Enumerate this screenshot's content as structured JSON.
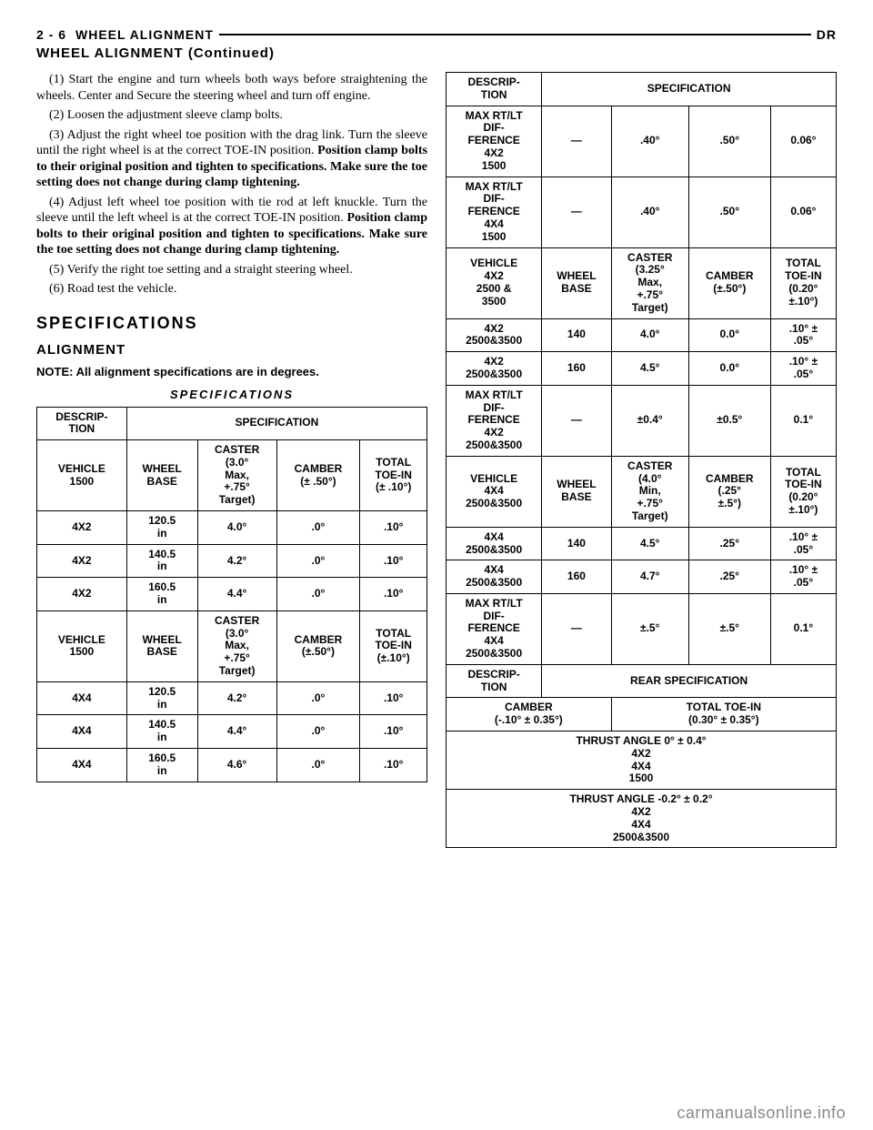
{
  "header": {
    "page_num": "2 - 6",
    "section": "WHEEL ALIGNMENT",
    "model": "DR",
    "continued": "WHEEL ALIGNMENT (Continued)"
  },
  "left_col": {
    "step1": "(1) Start the engine and turn wheels both ways before straightening the wheels. Center and Secure the steering wheel and turn off engine.",
    "step2": "(2) Loosen the adjustment sleeve clamp bolts.",
    "step3": "(3) Adjust the right wheel toe position with the drag link. Turn the sleeve until the right wheel is at the correct TOE-IN position. Position clamp bolts to their original position and tighten to specifications. Make sure the toe setting does not change during clamp tightening.",
    "step4": "(4) Adjust left wheel toe position with tie rod at left knuckle. Turn the sleeve until the left wheel is at the correct TOE-IN position. Position clamp bolts to their original position and tighten to specifications. Make sure the toe setting does not change during clamp tightening.",
    "step5": "(5) Verify the right toe setting and a straight steering wheel.",
    "step6": "(6) Road test the vehicle.",
    "h2": "SPECIFICATIONS",
    "h3": "ALIGNMENT",
    "note": "NOTE: All alignment specifications are in degrees.",
    "table_title": "SPECIFICATIONS"
  },
  "tableA": {
    "r1c1": "DESCRIP-\nTION",
    "r1c2": "SPECIFICATION",
    "r2": [
      "VEHICLE\n1500",
      "WHEEL\nBASE",
      "CASTER\n(3.0°\nMax,\n+.75°\nTarget)",
      "CAMBER\n(± .50°)",
      "TOTAL\nTOE-IN\n(± .10°)"
    ],
    "r3": [
      "4X2",
      "120.5\nin",
      "4.0°",
      ".0°",
      ".10°"
    ],
    "r4": [
      "4X2",
      "140.5\nin",
      "4.2°",
      ".0°",
      ".10°"
    ],
    "r5": [
      "4X2",
      "160.5\nin",
      "4.4°",
      ".0°",
      ".10°"
    ],
    "r6": [
      "VEHICLE\n1500",
      "WHEEL\nBASE",
      "CASTER\n(3.0°\nMax,\n+.75°\nTarget)",
      "CAMBER\n(±.50°)",
      "TOTAL\nTOE-IN\n(±.10°)"
    ],
    "r7": [
      "4X4",
      "120.5\nin",
      "4.2°",
      ".0°",
      ".10°"
    ],
    "r8": [
      "4X4",
      "140.5\nin",
      "4.4°",
      ".0°",
      ".10°"
    ],
    "r9": [
      "4X4",
      "160.5\nin",
      "4.6°",
      ".0°",
      ".10°"
    ]
  },
  "tableB": {
    "r1c1": "DESCRIP-\nTION",
    "r1c2": "SPECIFICATION",
    "r2": [
      "MAX RT/LT\nDIF-\nFERENCE\n4X2\n1500",
      "—",
      ".40°",
      ".50°",
      "0.06°"
    ],
    "r3": [
      "MAX RT/LT\nDIF-\nFERENCE\n4X4\n1500",
      "—",
      ".40°",
      ".50°",
      "0.06°"
    ],
    "r4": [
      "VEHICLE\n4X2\n2500 &\n3500",
      "WHEEL\nBASE",
      "CASTER\n(3.25°\nMax,\n+.75°\nTarget)",
      "CAMBER\n(±.50°)",
      "TOTAL\nTOE-IN\n(0.20°\n±.10°)"
    ],
    "r5": [
      "4X2\n2500&3500",
      "140",
      "4.0°",
      "0.0°",
      ".10° ±\n.05°"
    ],
    "r6": [
      "4X2\n2500&3500",
      "160",
      "4.5°",
      "0.0°",
      ".10° ±\n.05°"
    ],
    "r7": [
      "MAX RT/LT\nDIF-\nFERENCE\n4X2\n2500&3500",
      "—",
      "±0.4°",
      "±0.5°",
      "0.1°"
    ],
    "r8": [
      "VEHICLE\n4X4\n2500&3500",
      "WHEEL\nBASE",
      "CASTER\n(4.0°\nMin,\n+.75°\nTarget)",
      "CAMBER\n(.25°\n±.5°)",
      "TOTAL\nTOE-IN\n(0.20°\n±.10°)"
    ],
    "r9": [
      "4X4\n2500&3500",
      "140",
      "4.5°",
      ".25°",
      ".10° ±\n.05°"
    ],
    "r10": [
      "4X4\n2500&3500",
      "160",
      "4.7°",
      ".25°",
      ".10° ±\n.05°"
    ],
    "r11": [
      "MAX RT/LT\nDIF-\nFERENCE\n4X4\n2500&3500",
      "—",
      "±.5°",
      "±.5°",
      "0.1°"
    ],
    "r12c1": "DESCRIP-\nTION",
    "r12c2": "REAR SPECIFICATION",
    "r13a": "CAMBER\n(-.10° ± 0.35°)",
    "r13b": "TOTAL TOE-IN\n(0.30° ± 0.35°)",
    "r14": "THRUST ANGLE 0° ± 0.4°\n4X2\n4X4\n1500",
    "r15": "THRUST ANGLE -0.2° ± 0.2°\n4X2\n4X4\n2500&3500"
  },
  "watermark": "carmanualsonline.info"
}
